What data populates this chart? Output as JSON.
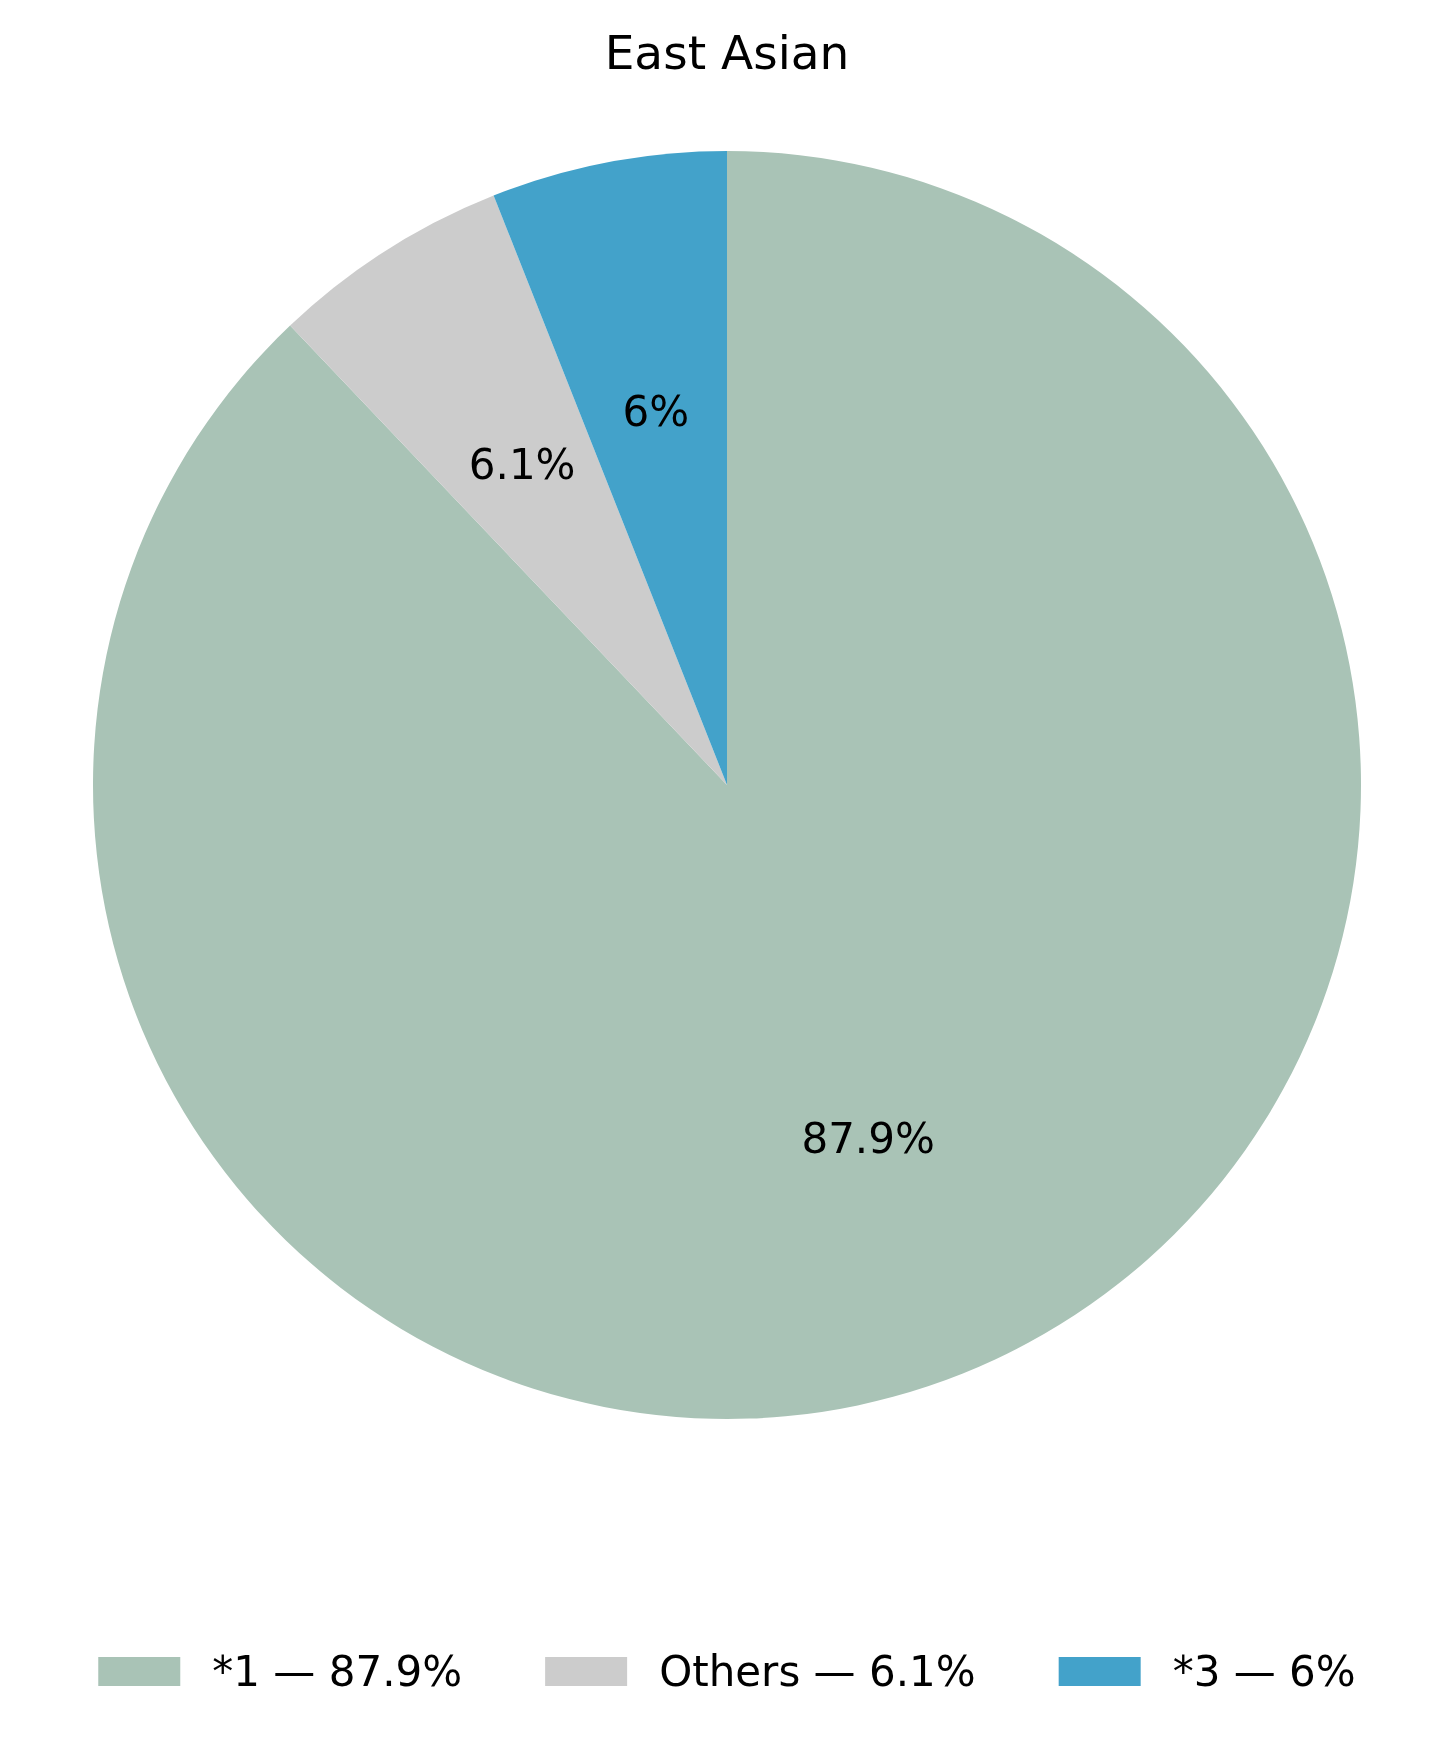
{
  "chart_data": {
    "type": "pie",
    "title": "East Asian",
    "categories": [
      "*1 — 87.9%",
      "Others — 6.1%",
      "*3 — 6%"
    ],
    "values": [
      87.9,
      6.1,
      6
    ],
    "colors": [
      "#a9c3b6",
      "#cccccc",
      "#43a2ca"
    ],
    "value_labels": [
      "87.9%",
      "6.1%",
      "6%"
    ],
    "legend": "bottom"
  }
}
